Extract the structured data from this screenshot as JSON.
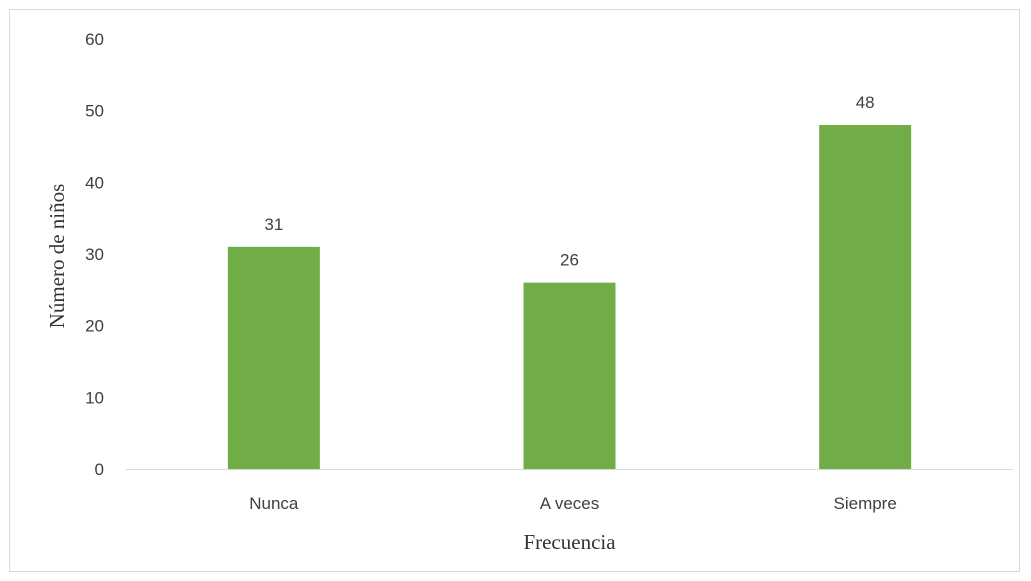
{
  "chart_data": {
    "type": "bar",
    "categories": [
      "Nunca",
      "A veces",
      "Siempre"
    ],
    "values": [
      31,
      26,
      48
    ],
    "data_labels": [
      "31",
      "26",
      "48"
    ],
    "title": "",
    "xlabel": "Frecuencia",
    "ylabel": "Número de niños",
    "ylim": [
      0,
      60
    ],
    "y_ticks": [
      0,
      10,
      20,
      30,
      40,
      50,
      60
    ],
    "grid": false,
    "legend": "none",
    "bar_color": "#70ad47",
    "axis_color": "#d9d9d9"
  }
}
